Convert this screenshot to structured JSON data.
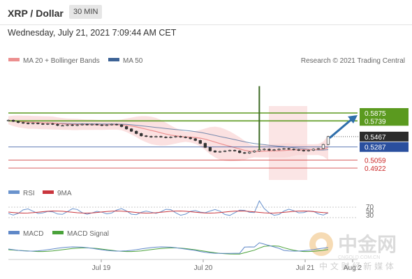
{
  "header": {
    "title": "XRP / Dollar",
    "timeframe": "30 MIN",
    "datetime": "Wednesday, July 21, 2021 7:09:44 AM CET"
  },
  "legend": {
    "ma20": "MA 20 + Bollinger Bands",
    "ma50": "MA 50",
    "credit": "Research © 2021 Trading Central",
    "rsi": "RSI",
    "rsi_ma": "9MA",
    "macd": "MACD",
    "macd_signal": "MACD Signal"
  },
  "colors": {
    "ma20": "#ec8f8f",
    "ma50": "#3d6396",
    "resistance": "#5b9a1f",
    "support": "#2a4f9e",
    "target_red": "#cc2a2a",
    "arrow": "#2f6fab",
    "candle": "#333333",
    "rsi": "#6a93cd",
    "rsi_ma": "#c9353d",
    "macd": "#5f88c8",
    "macd_signal": "#4aa23a"
  },
  "chart_data": [
    {
      "type": "candlestick",
      "title": "XRP / Dollar",
      "x_ticks": [
        "Jul 19",
        "Jul 20",
        "Jul 21",
        "Aug 2"
      ],
      "y_range": [
        0.4922,
        0.5875
      ],
      "price_levels": [
        {
          "value": "0.5875",
          "role": "resistance",
          "color": "#5b9a1f"
        },
        {
          "value": "0.5739",
          "role": "resistance",
          "color": "#5b9a1f"
        },
        {
          "value": "0.5467",
          "role": "last price",
          "color": "#333333"
        },
        {
          "value": "0.5287",
          "role": "support",
          "color": "#2a4f9e"
        },
        {
          "value": "0.5059",
          "role": "support",
          "color": "#cc2a2a"
        },
        {
          "value": "0.4922",
          "role": "support",
          "color": "#cc2a2a"
        }
      ],
      "close_series": [
        0.575,
        0.573,
        0.571,
        0.57,
        0.569,
        0.57,
        0.569,
        0.568,
        0.569,
        0.568,
        0.566,
        0.566,
        0.567,
        0.566,
        0.567,
        0.568,
        0.567,
        0.568,
        0.567,
        0.566,
        0.567,
        0.568,
        0.567,
        0.564,
        0.56,
        0.556,
        0.552,
        0.548,
        0.547,
        0.546,
        0.547,
        0.546,
        0.545,
        0.546,
        0.547,
        0.546,
        0.545,
        0.543,
        0.54,
        0.535,
        0.528,
        0.522,
        0.52,
        0.521,
        0.522,
        0.523,
        0.522,
        0.519,
        0.518,
        0.52,
        0.522,
        0.524,
        0.525,
        0.523,
        0.524,
        0.525,
        0.526,
        0.525,
        0.524,
        0.523,
        0.522,
        0.523,
        0.525,
        0.526,
        0.533,
        0.5467
      ],
      "spike_high_index": 51,
      "spike_high": 0.634,
      "projection": {
        "from": 0.5467,
        "to": 0.5875
      }
    },
    {
      "type": "line",
      "title": "RSI",
      "series": [
        {
          "name": "RSI"
        },
        {
          "name": "9MA"
        }
      ],
      "y_ticks": [
        "70",
        "50",
        "30"
      ],
      "y_range": [
        0,
        100
      ]
    },
    {
      "type": "line",
      "title": "MACD",
      "series": [
        {
          "name": "MACD"
        },
        {
          "name": "MACD Signal"
        }
      ]
    }
  ],
  "watermark": {
    "brand": "中金网",
    "domain": "CNGOLD.COM.CN",
    "tagline": "中 文 财 经 新 媒 体"
  }
}
